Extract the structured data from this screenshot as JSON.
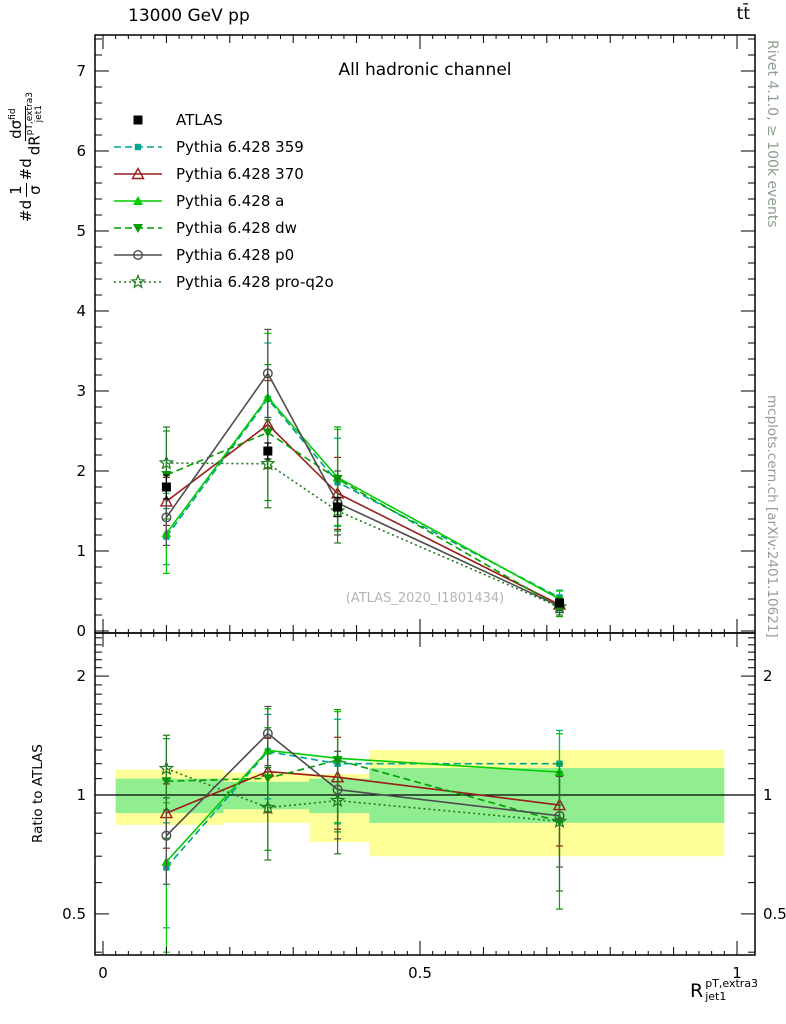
{
  "header": {
    "left": "13000 GeV pp",
    "right": "tt̄"
  },
  "plot": {
    "title": "All hadronic channel",
    "watermark": "(ATLAS_2020_I1801434)"
  },
  "side": {
    "right_top": "Rivet 4.1.0, ≥ 100k events",
    "right_bottom": "mcplots.cern.ch [arXiv:2401.10621]"
  },
  "axes": {
    "ratio_label": "Ratio to ATLAS",
    "x_title_main": "R",
    "x_title_sup": "pT,extra3",
    "x_title_sub": "jet1",
    "y_label": {
      "p1": "#d",
      "f1n": "1",
      "f1d": "σ",
      "p2": "#d",
      "f2n": "dσ",
      "f2n_sup": "fid",
      "f2d": "dR",
      "f2d_sup": "pT,extra3",
      "f2d_sub": "jet1"
    }
  },
  "chart_data": {
    "type": "line",
    "title": "All hadronic channel",
    "xlabel": "R_jet1^pT,extra3",
    "ylabel": "1/σ dσ^fid/dR",
    "x": [
      0.1,
      0.26,
      0.37,
      0.72
    ],
    "xlim": [
      -0.013,
      1.028
    ],
    "top_ylim": [
      0,
      7.45
    ],
    "ratio_ylim": [
      0.394,
      2.57
    ],
    "ratio_log": true,
    "x_ticks": [
      0,
      0.5,
      1
    ],
    "top_y_ticks": [
      0,
      1,
      2,
      3,
      4,
      5,
      6,
      7
    ],
    "ratio_y_ticks": [
      0.5,
      1,
      2
    ],
    "series": [
      {
        "name": "ATLAS",
        "color": "#000000",
        "line": "none",
        "marker": "square",
        "values": [
          1.8,
          2.25,
          1.55,
          0.35
        ],
        "errors": [
          0.15,
          0.1,
          0.12,
          0.05
        ]
      },
      {
        "name": "Pythia 6.428 359",
        "color": "#00A290",
        "line": "dashed",
        "marker": "square-small",
        "values": [
          1.18,
          2.9,
          1.86,
          0.42
        ],
        "errors": [
          0.35,
          0.7,
          0.55,
          0.09
        ]
      },
      {
        "name": "Pythia 6.428 370",
        "color": "#9B1B1B",
        "line": "solid",
        "marker": "triangle-up-open",
        "values": [
          1.62,
          2.58,
          1.72,
          0.33
        ],
        "errors": [
          0.3,
          0.55,
          0.45,
          0.07
        ]
      },
      {
        "name": "Pythia 6.428 a",
        "color": "#00CE00",
        "line": "solid",
        "marker": "triangle-up",
        "values": [
          1.22,
          2.92,
          1.92,
          0.4
        ],
        "errors": [
          0.5,
          0.8,
          0.6,
          0.1
        ]
      },
      {
        "name": "Pythia 6.428 dw",
        "color": "#00A000",
        "line": "dashed",
        "marker": "triangle-down",
        "values": [
          1.95,
          2.48,
          1.9,
          0.3
        ],
        "errors": [
          0.55,
          0.85,
          0.65,
          0.12
        ]
      },
      {
        "name": "Pythia 6.428 p0",
        "color": "#4D4D4D",
        "line": "solid",
        "marker": "circle-open",
        "values": [
          1.42,
          3.22,
          1.6,
          0.31
        ],
        "errors": [
          0.35,
          0.55,
          0.4,
          0.08
        ]
      },
      {
        "name": "Pythia 6.428 pro-q2o",
        "color": "#1F7A1F",
        "line": "dotted",
        "marker": "star-open",
        "values": [
          2.1,
          2.09,
          1.5,
          0.3
        ],
        "errors": [
          0.45,
          0.55,
          0.4,
          0.1
        ]
      }
    ],
    "ratio_reference": 1,
    "ratio_bands": {
      "bin_edges": [
        0.02,
        0.19,
        0.325,
        0.42,
        0.98
      ],
      "yellow_color": "#FFFF99",
      "green_color": "#90EE90",
      "yellow": [
        [
          0.84,
          1.16
        ],
        [
          0.85,
          1.14
        ],
        [
          0.76,
          1.13
        ],
        [
          0.7,
          1.3
        ]
      ],
      "green": [
        [
          0.9,
          1.1
        ],
        [
          0.92,
          1.08
        ],
        [
          0.9,
          1.1
        ],
        [
          0.85,
          1.17
        ]
      ]
    }
  }
}
